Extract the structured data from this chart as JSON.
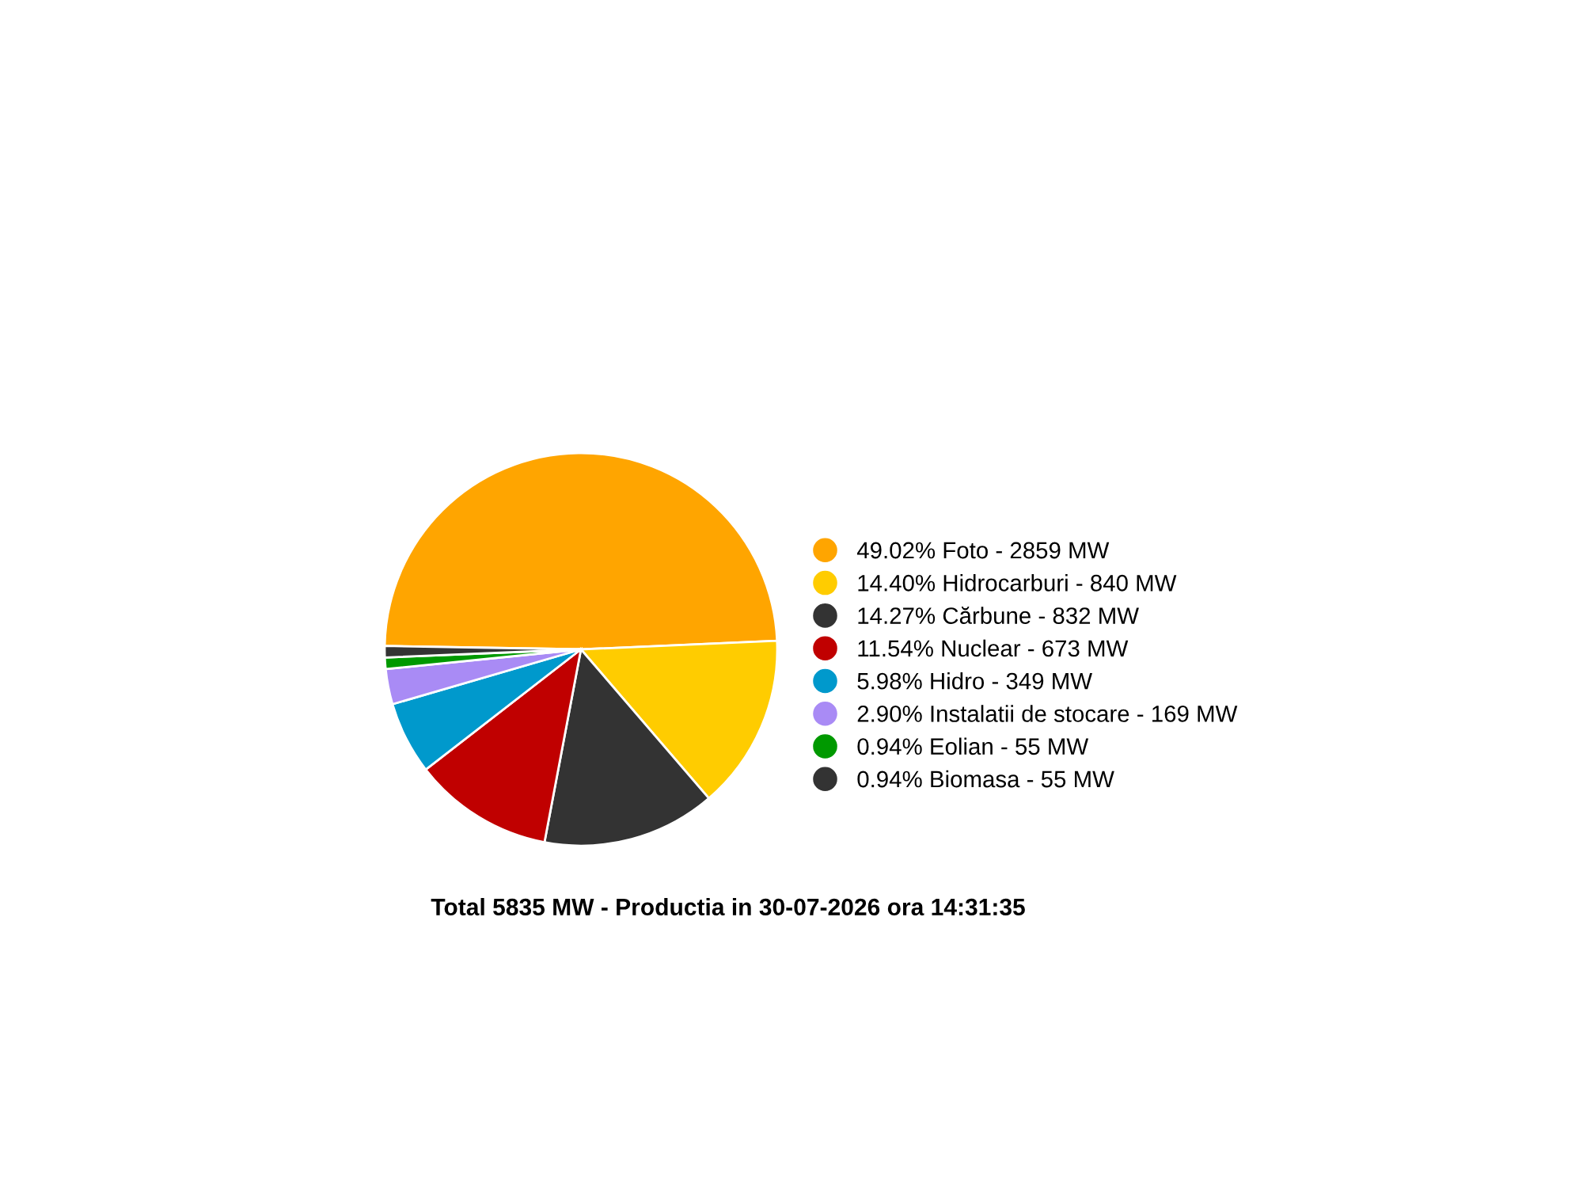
{
  "chart_data": {
    "type": "pie",
    "categories": [
      "49.02% Foto - 2859 MW",
      "14.40% Hidrocarburi - 840 MW",
      "14.27% Cărbune - 832 MW",
      "11.54% Nuclear - 673 MW",
      "5.98% Hidro - 349 MW",
      "2.90% Instalatii de stocare - 169 MW",
      "0.94% Eolian - 55 MW",
      "0.94% Biomasa - 55 MW"
    ],
    "values": [
      49.02,
      14.4,
      14.27,
      11.54,
      5.98,
      2.9,
      0.94,
      0.94
    ],
    "colors": [
      "#ffa500",
      "#ffcc00",
      "#333333",
      "#c00000",
      "#0099cc",
      "#a98bf5",
      "#009900",
      "#333333"
    ],
    "legend": "right",
    "annotations": [
      "Total 5835 MW - Productia in 30-07-2026 ora 14:31:35"
    ]
  }
}
